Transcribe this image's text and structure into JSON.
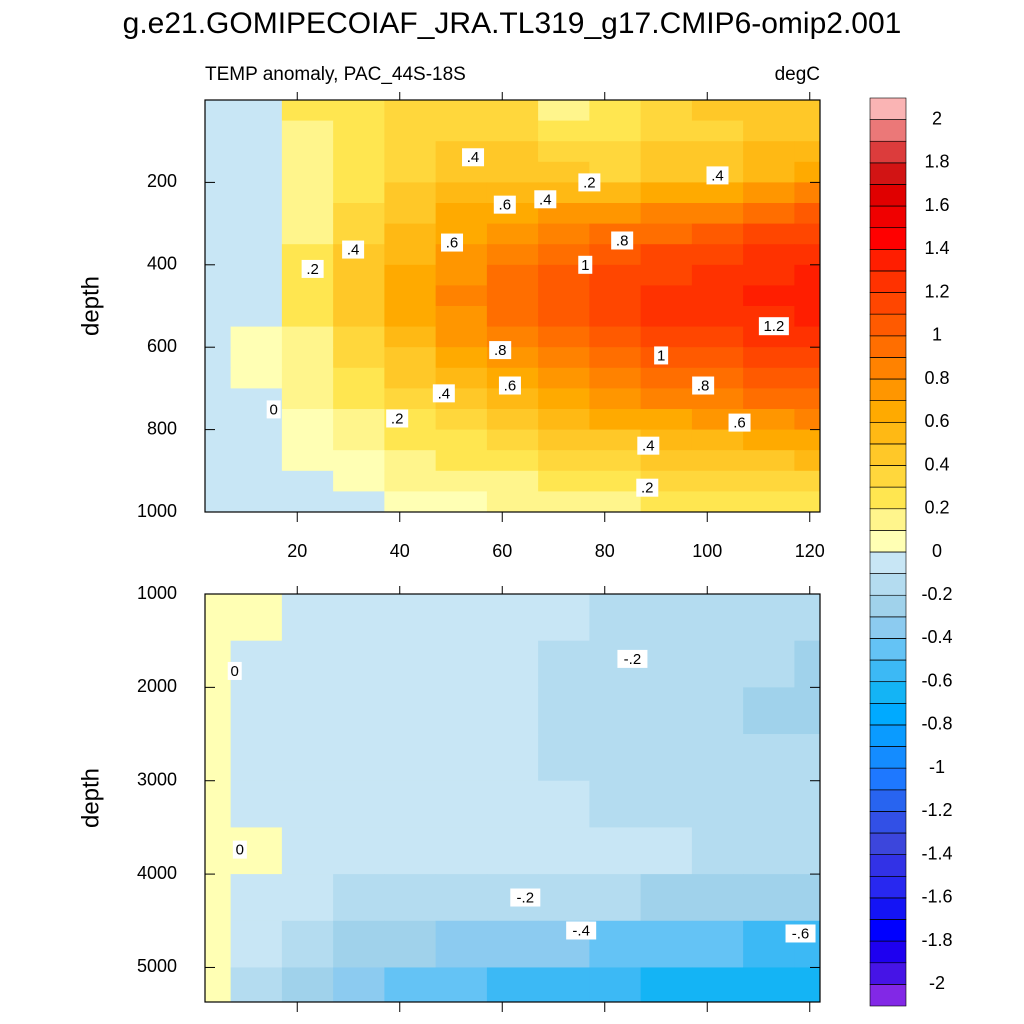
{
  "chart_data": [
    {
      "type": "contour",
      "title": "g.e21.GOMIPECOIAF_JRA.TL319_g17.CMIP6-omip2.001",
      "subtitle_left": "TEMP anomaly, PAC_44S-18S",
      "subtitle_right": "degC",
      "ylabel": "depth",
      "y_reversed": true,
      "xlim": [
        2,
        122
      ],
      "ylim": [
        0,
        1000
      ],
      "xticks": [
        20,
        40,
        60,
        80,
        100,
        120
      ],
      "yticks": [
        200,
        400,
        600,
        800,
        1000
      ],
      "x": [
        2,
        12,
        22,
        32,
        42,
        52,
        62,
        72,
        82,
        92,
        102,
        112,
        122
      ],
      "y": [
        25,
        75,
        125,
        175,
        225,
        275,
        325,
        375,
        425,
        475,
        525,
        575,
        625,
        675,
        725,
        775,
        825,
        875,
        925,
        975
      ],
      "z": [
        [
          -0.1,
          -0.1,
          0.2,
          0.2,
          0.3,
          0.3,
          0.3,
          0.1,
          0.2,
          0.3,
          0.4,
          0.4,
          0.4
        ],
        [
          -0.1,
          -0.1,
          0.1,
          0.2,
          0.3,
          0.3,
          0.3,
          0.2,
          0.2,
          0.3,
          0.3,
          0.4,
          0.4
        ],
        [
          -0.1,
          -0.1,
          0.1,
          0.2,
          0.3,
          0.4,
          0.4,
          0.3,
          0.3,
          0.4,
          0.4,
          0.5,
          0.5
        ],
        [
          -0.1,
          -0.1,
          0.1,
          0.2,
          0.3,
          0.4,
          0.4,
          0.4,
          0.3,
          0.4,
          0.4,
          0.5,
          0.6
        ],
        [
          -0.1,
          -0.1,
          0.1,
          0.2,
          0.4,
          0.5,
          0.5,
          0.5,
          0.5,
          0.6,
          0.6,
          0.7,
          0.8
        ],
        [
          -0.1,
          -0.1,
          0.1,
          0.3,
          0.4,
          0.6,
          0.6,
          0.7,
          0.7,
          0.8,
          0.8,
          0.9,
          1.0
        ],
        [
          -0.1,
          -0.1,
          0.1,
          0.3,
          0.5,
          0.6,
          0.7,
          0.8,
          0.9,
          0.9,
          1.0,
          1.1,
          1.1
        ],
        [
          -0.1,
          -0.1,
          0.2,
          0.4,
          0.5,
          0.7,
          0.8,
          0.9,
          1.0,
          1.1,
          1.1,
          1.2,
          1.2
        ],
        [
          -0.1,
          -0.1,
          0.2,
          0.4,
          0.6,
          0.7,
          0.9,
          1.0,
          1.1,
          1.1,
          1.2,
          1.2,
          1.3
        ],
        [
          -0.1,
          -0.1,
          0.2,
          0.4,
          0.6,
          0.8,
          0.9,
          1.0,
          1.1,
          1.2,
          1.2,
          1.3,
          1.3
        ],
        [
          -0.1,
          -0.05,
          0.2,
          0.4,
          0.6,
          0.7,
          0.9,
          1.0,
          1.1,
          1.2,
          1.2,
          1.2,
          1.3
        ],
        [
          -0.1,
          0.0,
          0.1,
          0.3,
          0.5,
          0.7,
          0.8,
          0.9,
          1.0,
          1.1,
          1.1,
          1.2,
          1.2
        ],
        [
          -0.1,
          0.0,
          0.1,
          0.3,
          0.4,
          0.6,
          0.7,
          0.8,
          0.9,
          1.0,
          1.0,
          1.1,
          1.1
        ],
        [
          -0.1,
          0.0,
          0.1,
          0.2,
          0.4,
          0.5,
          0.6,
          0.7,
          0.8,
          0.9,
          0.9,
          1.0,
          1.0
        ],
        [
          -0.1,
          -0.05,
          0.1,
          0.2,
          0.3,
          0.4,
          0.5,
          0.6,
          0.7,
          0.8,
          0.8,
          0.9,
          0.9
        ],
        [
          -0.1,
          -0.05,
          0.05,
          0.1,
          0.2,
          0.3,
          0.4,
          0.5,
          0.6,
          0.6,
          0.7,
          0.7,
          0.8
        ],
        [
          -0.1,
          -0.1,
          0.0,
          0.1,
          0.2,
          0.2,
          0.3,
          0.4,
          0.4,
          0.5,
          0.5,
          0.6,
          0.6
        ],
        [
          -0.1,
          -0.1,
          0.0,
          0.05,
          0.1,
          0.2,
          0.2,
          0.3,
          0.3,
          0.4,
          0.4,
          0.4,
          0.5
        ],
        [
          -0.1,
          -0.1,
          -0.05,
          0.0,
          0.1,
          0.1,
          0.1,
          0.2,
          0.2,
          0.3,
          0.3,
          0.3,
          0.3
        ],
        [
          -0.1,
          -0.1,
          -0.05,
          -0.05,
          0.0,
          0.05,
          0.1,
          0.1,
          0.1,
          0.2,
          0.2,
          0.2,
          0.2
        ]
      ],
      "contour_labels": [
        {
          "x": 54.3,
          "y": 139,
          "value": 0.4,
          "label": ".4"
        },
        {
          "x": 77,
          "y": 200,
          "value": 0.2,
          "label": ".2"
        },
        {
          "x": 102,
          "y": 183,
          "value": 0.4,
          "label": ".4"
        },
        {
          "x": 60.5,
          "y": 254,
          "value": 0.6,
          "label": ".6"
        },
        {
          "x": 68.4,
          "y": 241,
          "value": 0.4,
          "label": ".4"
        },
        {
          "x": 83.4,
          "y": 341,
          "value": 0.8,
          "label": ".8"
        },
        {
          "x": 50.2,
          "y": 346,
          "value": 0.6,
          "label": ".6"
        },
        {
          "x": 30.9,
          "y": 363,
          "value": 0.4,
          "label": ".4"
        },
        {
          "x": 23,
          "y": 410,
          "value": 0.2,
          "label": ".2"
        },
        {
          "x": 76.2,
          "y": 400,
          "value": 1,
          "label": "1"
        },
        {
          "x": 113,
          "y": 549,
          "value": 1.2,
          "label": "1.2"
        },
        {
          "x": 59.6,
          "y": 607,
          "value": 0.8,
          "label": ".8"
        },
        {
          "x": 91,
          "y": 620,
          "value": 1,
          "label": "1"
        },
        {
          "x": 61.5,
          "y": 693,
          "value": 0.6,
          "label": ".6"
        },
        {
          "x": 48.6,
          "y": 712,
          "value": 0.4,
          "label": ".4"
        },
        {
          "x": 99.2,
          "y": 693,
          "value": 0.8,
          "label": ".8"
        },
        {
          "x": 15.4,
          "y": 751,
          "value": 0,
          "label": "0"
        },
        {
          "x": 39.5,
          "y": 773,
          "value": 0.2,
          "label": ".2"
        },
        {
          "x": 106.3,
          "y": 783,
          "value": 0.6,
          "label": ".6"
        },
        {
          "x": 88.5,
          "y": 839,
          "value": 0.4,
          "label": ".4"
        },
        {
          "x": 88.3,
          "y": 941,
          "value": 0.2,
          "label": ".2"
        }
      ]
    },
    {
      "type": "contour",
      "ylabel": "depth",
      "y_reversed": true,
      "xlim": [
        2,
        122
      ],
      "ylim": [
        1000,
        5370
      ],
      "yticks": [
        1000,
        2000,
        3000,
        4000,
        5000
      ],
      "x": [
        2,
        12,
        22,
        32,
        42,
        52,
        62,
        72,
        82,
        92,
        102,
        112,
        122
      ],
      "y": [
        1250,
        1750,
        2250,
        2750,
        3250,
        3750,
        4250,
        4750,
        5250
      ],
      "z": [
        [
          0.02,
          0.02,
          -0.05,
          -0.05,
          -0.05,
          -0.05,
          -0.1,
          -0.1,
          -0.12,
          -0.12,
          -0.12,
          -0.15,
          -0.15
        ],
        [
          0.02,
          -0.02,
          -0.05,
          -0.05,
          -0.05,
          -0.05,
          -0.1,
          -0.12,
          -0.15,
          -0.18,
          -0.2,
          -0.2,
          -0.22
        ],
        [
          0.02,
          -0.05,
          -0.05,
          -0.05,
          -0.05,
          -0.05,
          -0.1,
          -0.12,
          -0.15,
          -0.18,
          -0.2,
          -0.22,
          -0.25
        ],
        [
          0.02,
          -0.05,
          -0.05,
          -0.05,
          -0.05,
          -0.05,
          -0.08,
          -0.12,
          -0.15,
          -0.15,
          -0.18,
          -0.2,
          -0.2
        ],
        [
          0.02,
          -0.05,
          -0.05,
          -0.05,
          -0.05,
          -0.05,
          -0.05,
          -0.08,
          -0.12,
          -0.15,
          -0.15,
          -0.15,
          -0.15
        ],
        [
          0.02,
          0.0,
          -0.05,
          -0.05,
          -0.05,
          -0.05,
          -0.05,
          -0.05,
          -0.05,
          -0.08,
          -0.12,
          -0.12,
          -0.15
        ],
        [
          0.02,
          -0.05,
          -0.1,
          -0.15,
          -0.15,
          -0.18,
          -0.2,
          -0.2,
          -0.2,
          -0.25,
          -0.25,
          -0.25,
          -0.3
        ],
        [
          0.02,
          -0.1,
          -0.15,
          -0.25,
          -0.3,
          -0.35,
          -0.4,
          -0.4,
          -0.45,
          -0.45,
          -0.5,
          -0.55,
          -0.6
        ],
        [
          0.02,
          -0.15,
          -0.25,
          -0.35,
          -0.45,
          -0.5,
          -0.55,
          -0.6,
          -0.6,
          -0.65,
          -0.65,
          -0.7,
          -0.7
        ]
      ],
      "contour_labels": [
        {
          "x": 7.8,
          "y": 1824,
          "value": 0,
          "label": "0"
        },
        {
          "x": 8.8,
          "y": 3738,
          "value": 0,
          "label": "0"
        },
        {
          "x": 85.4,
          "y": 1695,
          "value": -0.2,
          "label": "-.2"
        },
        {
          "x": 64.5,
          "y": 4251,
          "value": -0.2,
          "label": "-.2"
        },
        {
          "x": 75.4,
          "y": 4604,
          "value": -0.4,
          "label": "-.4"
        },
        {
          "x": 118.2,
          "y": 4636,
          "value": -0.6,
          "label": "-.6"
        }
      ]
    }
  ],
  "colorbar": {
    "levels": [
      -2,
      -1.9,
      -1.8,
      -1.7,
      -1.6,
      -1.5,
      -1.4,
      -1.3,
      -1.2,
      -1.1,
      -1,
      -0.9,
      -0.8,
      -0.7,
      -0.6,
      -0.5,
      -0.4,
      -0.3,
      -0.2,
      -0.1,
      0,
      0.1,
      0.2,
      0.3,
      0.4,
      0.5,
      0.6,
      0.7,
      0.8,
      0.9,
      1,
      1.1,
      1.2,
      1.3,
      1.4,
      1.5,
      1.6,
      1.7,
      1.8,
      1.9,
      2
    ],
    "colors": [
      "#8228e6",
      "#4614e6",
      "#1e00f0",
      "#0000ff",
      "#1414f5",
      "#2828f0",
      "#3232e6",
      "#3c46dc",
      "#3250e6",
      "#2864f0",
      "#1e78ff",
      "#148cff",
      "#0a9bff",
      "#00aaff",
      "#14b4f5",
      "#3cb9f5",
      "#64c3f5",
      "#8ccbf0",
      "#a0d2eb",
      "#b4dcf0",
      "#c8e6f5",
      "#ffffb4",
      "#fff58c",
      "#ffe650",
      "#ffd73c",
      "#ffc828",
      "#ffb914",
      "#ffaa00",
      "#ff9600",
      "#ff8200",
      "#ff6e00",
      "#ff5a00",
      "#ff4600",
      "#ff3200",
      "#ff1e00",
      "#ff0000",
      "#f00000",
      "#e00000",
      "#d21414",
      "#dc3c3c",
      "#eb7878",
      "#fab4b4"
    ],
    "ticks": [
      -2,
      -1.8,
      -1.6,
      -1.4,
      -1.2,
      -1,
      -0.8,
      -0.6,
      -0.4,
      -0.2,
      0,
      0.2,
      0.4,
      0.6,
      0.8,
      1,
      1.2,
      1.4,
      1.6,
      1.8,
      2
    ]
  }
}
